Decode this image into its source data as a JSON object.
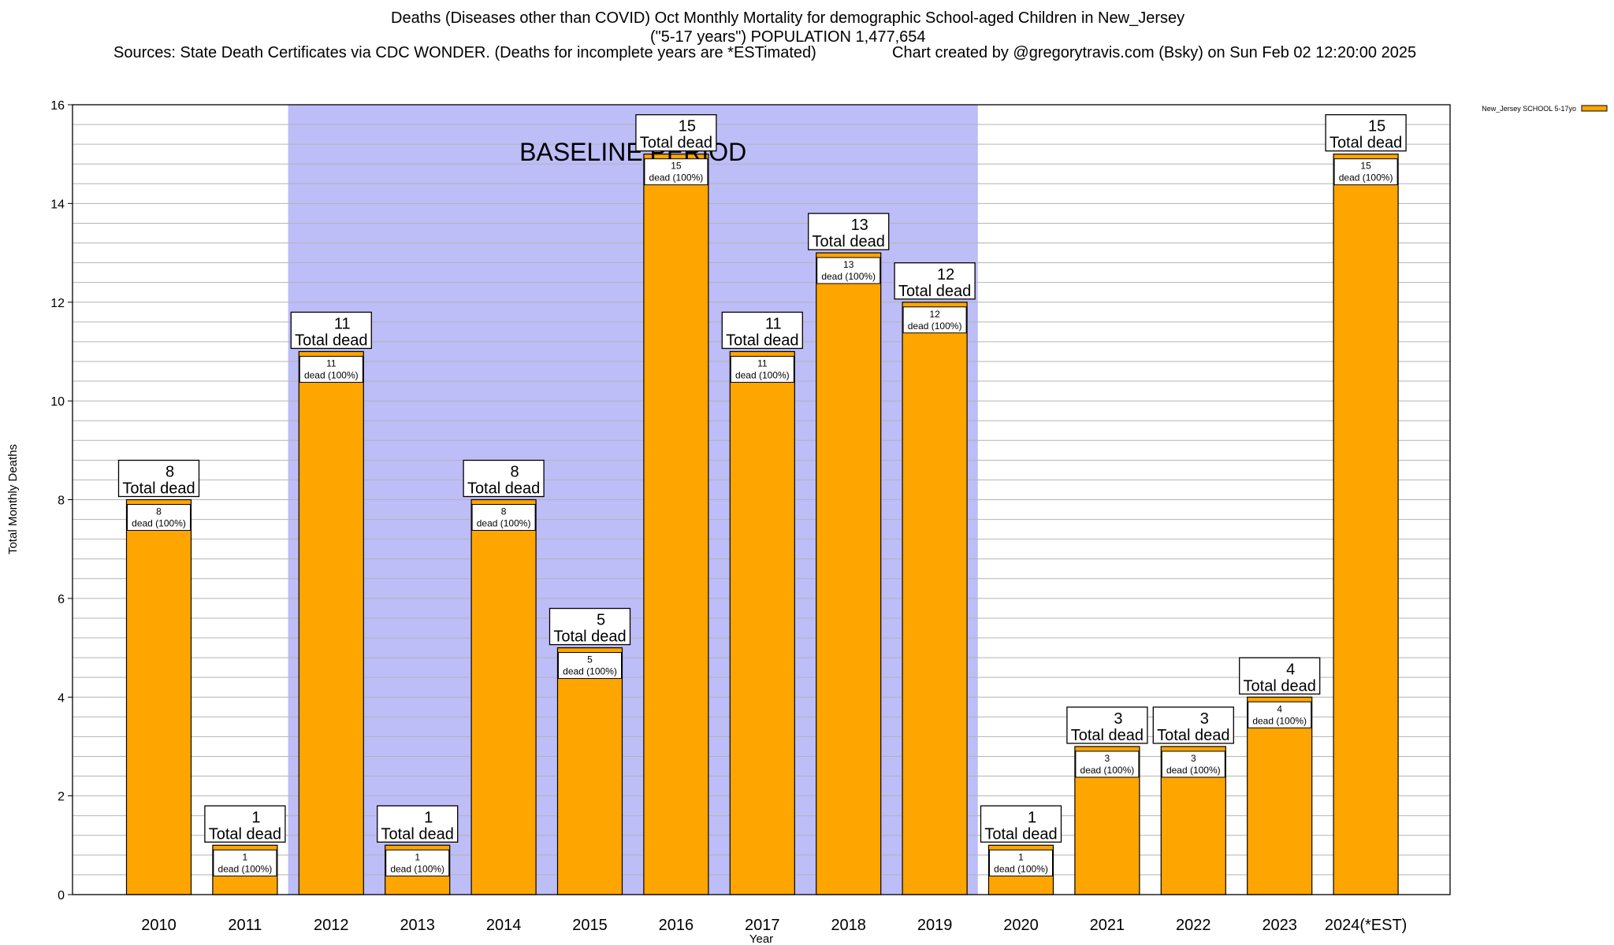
{
  "header": {
    "title": "Deaths (Diseases other than COVID) Oct Monthly Mortality for demographic School-aged Children in New_Jersey",
    "subtitle": "(\"5-17 years\") POPULATION 1,477,654",
    "sources": "Sources: State Death Certificates via CDC WONDER. (Deaths for incomplete years are *ESTimated)",
    "credit": "Chart created by @gregorytravis.com (Bsky) on Sun Feb 02 12:20:00 2025"
  },
  "colors": {
    "bar": "#FFA500",
    "baseline_region": "#BDBDF8",
    "grid": "#b4b4b4",
    "frame": "#000000"
  },
  "chart_data": {
    "type": "bar",
    "xlabel": "Year",
    "ylabel": "Total Monthly Deaths",
    "ylim": [
      0,
      16
    ],
    "y_ticks": [
      0,
      2,
      4,
      6,
      8,
      10,
      12,
      14,
      16
    ],
    "minor_y_step": 0.4,
    "grid": true,
    "legend": {
      "position": "top-right",
      "entries": [
        "New_Jersey SCHOOL 5-17yo"
      ]
    },
    "categories": [
      "2010",
      "2011",
      "2012",
      "2013",
      "2014",
      "2015",
      "2016",
      "2017",
      "2018",
      "2019",
      "2020",
      "2021",
      "2022",
      "2023",
      "2024(*EST)"
    ],
    "series": [
      {
        "name": "New_Jersey SCHOOL 5-17yo",
        "values": [
          8,
          1,
          11,
          1,
          8,
          5,
          15,
          11,
          13,
          12,
          1,
          3,
          3,
          4,
          15
        ]
      }
    ],
    "total_label": "Total dead",
    "inner_label_suffix": "dead (100%)",
    "baseline_region": {
      "from": "2012",
      "to": "2019",
      "label": "BASELINE PERIOD"
    }
  }
}
